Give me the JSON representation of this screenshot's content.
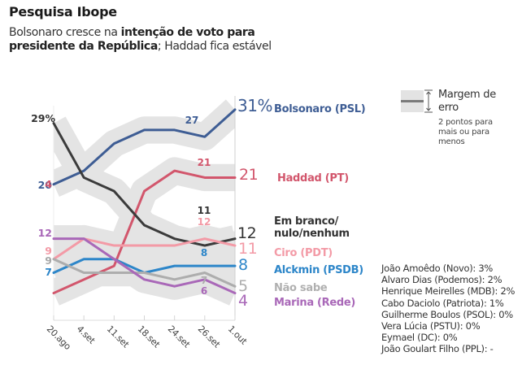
{
  "header": {
    "title": "Pesquisa Ibope",
    "subtitle_parts": [
      {
        "text": "Bolsonaro cresce na ",
        "bold": false
      },
      {
        "text": "intenção de voto para presidente da República",
        "bold": true
      },
      {
        "text": "; Haddad fica estável",
        "bold": false
      }
    ]
  },
  "legend": {
    "title": "Margem de erro",
    "note": "2 pontos para mais ou para menos"
  },
  "others": [
    "João Amoêdo (Novo): 3%",
    "Alvaro Dias (Podemos): 2%",
    "Henrique Meirelles (MDB): 2%",
    "Cabo Daciolo (Patriota): 1%",
    "Guilherme Boulos (PSOL): 0%",
    "Vera Lúcia (PSTU): 0%",
    "Eymael (DC): 0%",
    "João Goulart Filho (PPL): -"
  ],
  "chart_data": {
    "type": "line",
    "title": "Pesquisa Ibope",
    "xlabel": "",
    "ylabel": "",
    "unit": "%",
    "margin_of_error": 2,
    "categories": [
      "20.ago",
      "4.set",
      "11.set",
      "18.set",
      "24.set",
      "26.set",
      "1.out"
    ],
    "ylim": [
      0,
      33
    ],
    "grid": false,
    "legend_position": "right (labels at line ends)",
    "series": [
      {
        "name": "Bolsonaro (PSL)",
        "color": "#3e5d94",
        "values": [
          20,
          22,
          26,
          28,
          28,
          27,
          31
        ],
        "start_label": "20",
        "end_label": "31%",
        "mid_label": {
          "index": 5,
          "text": "27"
        }
      },
      {
        "name": "Haddad (PT)",
        "color": "#d2566c",
        "values": [
          4,
          6,
          8,
          19,
          22,
          21,
          21
        ],
        "start_label": "4",
        "end_label": "21",
        "mid_label": {
          "index": 5,
          "text": "21"
        }
      },
      {
        "name": "Em branco/ nulo/nenhum",
        "color": "#3b3b3b",
        "values": [
          29,
          21,
          19,
          14,
          12,
          11,
          12
        ],
        "start_label": "29%",
        "end_label": "12",
        "mid_label": {
          "index": 5,
          "text": "11"
        }
      },
      {
        "name": "Ciro (PDT)",
        "color": "#f39aa6",
        "values": [
          9,
          12,
          11,
          11,
          11,
          12,
          11
        ],
        "start_label": "9",
        "end_label": "11",
        "mid_label": {
          "index": 5,
          "text": "12"
        }
      },
      {
        "name": "Alckmin (PSDB)",
        "color": "#2d86c9",
        "values": [
          7,
          9,
          9,
          7,
          8,
          8,
          8
        ],
        "start_label": "7",
        "end_label": "8",
        "mid_label": {
          "index": 5,
          "text": "8"
        }
      },
      {
        "name": "Não sabe",
        "color": "#adadad",
        "values": [
          9,
          7,
          7,
          7,
          6,
          7,
          5
        ],
        "start_label": "9",
        "end_label": "5",
        "mid_label": {
          "index": 5,
          "text": "7"
        }
      },
      {
        "name": "Marina (Rede)",
        "color": "#a968b8",
        "values": [
          12,
          12,
          9,
          6,
          5,
          6,
          4
        ],
        "start_label": "12",
        "end_label": "4",
        "mid_label": {
          "index": 5,
          "text": "6"
        }
      }
    ]
  }
}
